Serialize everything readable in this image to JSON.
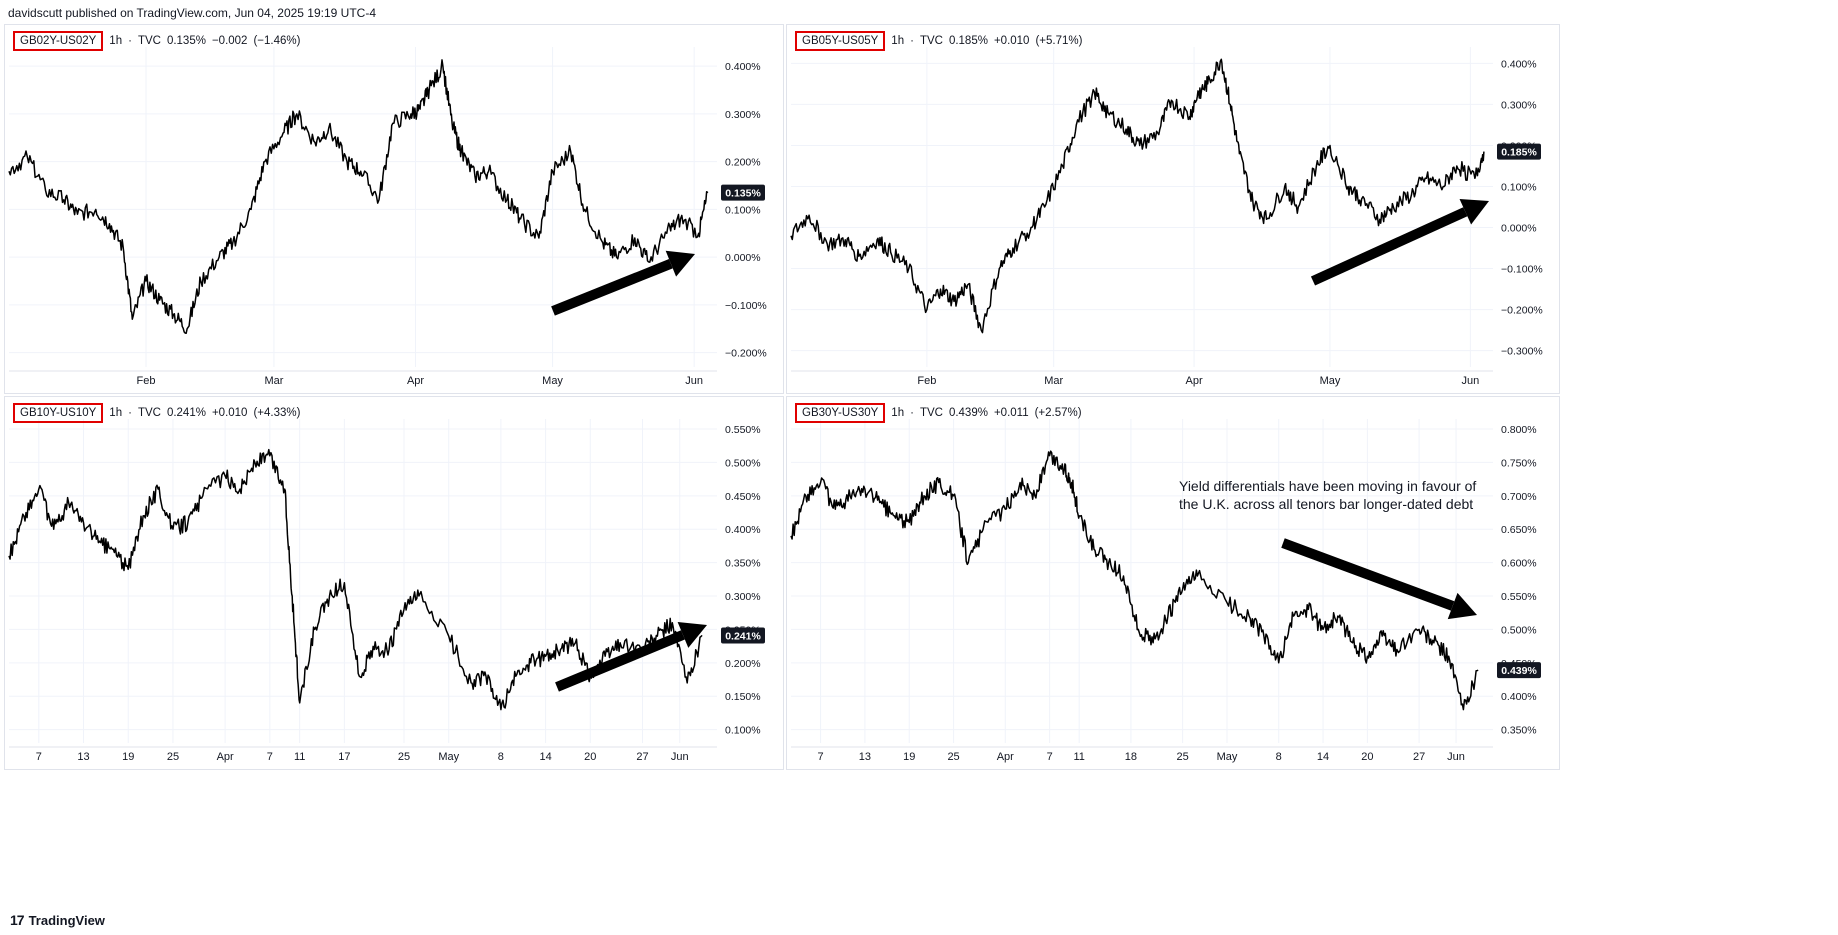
{
  "publisher": "davidscutt published on TradingView.com, Jun 04, 2025 19:19 UTC-4",
  "footer": {
    "logo_icon": "tradingview-logo-icon",
    "brand": "TradingView"
  },
  "colors": {
    "line": "#000000",
    "highlight": "#e00000",
    "grid": "#f0f3fa",
    "arrow": "#000000"
  },
  "chart_data": [
    {
      "type": "line",
      "symbol": "GB02Y-US02Y",
      "interval": "1h",
      "source": "TVC",
      "last_value": "0.135%",
      "change": "−0.002",
      "change_pct": "(−1.46%)",
      "price_badge": "0.135%",
      "y_ticks": [
        "0.400%",
        "0.300%",
        "0.200%",
        "0.100%",
        "0.000%",
        "−0.100%",
        "−0.200%"
      ],
      "y_tick_values": [
        0.4,
        0.3,
        0.2,
        0.1,
        0.0,
        -0.1,
        -0.2
      ],
      "ylim": [
        -0.23,
        0.44
      ],
      "x_ticks": [
        "Feb",
        "Mar",
        "Apr",
        "May",
        "Jun"
      ],
      "x_tick_dates": [
        "2025-02-01",
        "2025-03-01",
        "2025-04-01",
        "2025-05-01",
        "2025-06-01"
      ],
      "xlim": [
        "2025-01-02",
        "2025-06-06"
      ],
      "annotation_arrow": {
        "direction": "up-right"
      },
      "series": [
        {
          "x": [
            "2025-01-02",
            "2025-01-06",
            "2025-01-10",
            "2025-01-14",
            "2025-01-17",
            "2025-01-21",
            "2025-01-24",
            "2025-01-27",
            "2025-01-29",
            "2025-02-01",
            "2025-02-04",
            "2025-02-07",
            "2025-02-10",
            "2025-02-13",
            "2025-02-17",
            "2025-02-20",
            "2025-02-24",
            "2025-02-27",
            "2025-03-03",
            "2025-03-06",
            "2025-03-10",
            "2025-03-13",
            "2025-03-17",
            "2025-03-20",
            "2025-03-24",
            "2025-03-27",
            "2025-03-31",
            "2025-04-02",
            "2025-04-04",
            "2025-04-07",
            "2025-04-09",
            "2025-04-11",
            "2025-04-14",
            "2025-04-17",
            "2025-04-21",
            "2025-04-24",
            "2025-04-28",
            "2025-05-01",
            "2025-05-05",
            "2025-05-08",
            "2025-05-12",
            "2025-05-15",
            "2025-05-19",
            "2025-05-22",
            "2025-05-26",
            "2025-05-29",
            "2025-06-02",
            "2025-06-04"
          ],
          "values": [
            0.18,
            0.21,
            0.14,
            0.12,
            0.09,
            0.1,
            0.07,
            0.02,
            -0.13,
            -0.05,
            -0.09,
            -0.12,
            -0.15,
            -0.05,
            0.0,
            0.03,
            0.1,
            0.2,
            0.26,
            0.3,
            0.24,
            0.27,
            0.2,
            0.18,
            0.12,
            0.28,
            0.3,
            0.31,
            0.35,
            0.4,
            0.28,
            0.22,
            0.17,
            0.18,
            0.12,
            0.08,
            0.04,
            0.18,
            0.22,
            0.1,
            0.03,
            0.0,
            0.04,
            -0.01,
            0.05,
            0.08,
            0.05,
            0.135
          ]
        }
      ]
    },
    {
      "type": "line",
      "symbol": "GB05Y-US05Y",
      "interval": "1h",
      "source": "TVC",
      "last_value": "0.185%",
      "change": "+0.010",
      "change_pct": "(+5.71%)",
      "price_badge": "0.185%",
      "y_ticks": [
        "0.400%",
        "0.300%",
        "0.200%",
        "0.100%",
        "0.000%",
        "−0.100%",
        "−0.200%",
        "−0.300%"
      ],
      "y_tick_values": [
        0.4,
        0.3,
        0.2,
        0.1,
        0.0,
        -0.1,
        -0.2,
        -0.3
      ],
      "ylim": [
        -0.34,
        0.44
      ],
      "x_ticks": [
        "Feb",
        "Mar",
        "Apr",
        "May",
        "Jun"
      ],
      "x_tick_dates": [
        "2025-02-01",
        "2025-03-01",
        "2025-04-01",
        "2025-05-01",
        "2025-06-01"
      ],
      "xlim": [
        "2025-01-02",
        "2025-06-06"
      ],
      "annotation_arrow": {
        "direction": "up-right"
      },
      "series": [
        {
          "x": [
            "2025-01-02",
            "2025-01-06",
            "2025-01-10",
            "2025-01-14",
            "2025-01-17",
            "2025-01-21",
            "2025-01-24",
            "2025-01-28",
            "2025-02-01",
            "2025-02-04",
            "2025-02-07",
            "2025-02-10",
            "2025-02-13",
            "2025-02-17",
            "2025-02-20",
            "2025-02-24",
            "2025-02-27",
            "2025-03-03",
            "2025-03-06",
            "2025-03-10",
            "2025-03-13",
            "2025-03-17",
            "2025-03-20",
            "2025-03-24",
            "2025-03-27",
            "2025-03-31",
            "2025-04-02",
            "2025-04-04",
            "2025-04-07",
            "2025-04-09",
            "2025-04-11",
            "2025-04-14",
            "2025-04-17",
            "2025-04-21",
            "2025-04-24",
            "2025-04-28",
            "2025-05-01",
            "2025-05-05",
            "2025-05-08",
            "2025-05-12",
            "2025-05-15",
            "2025-05-19",
            "2025-05-22",
            "2025-05-26",
            "2025-05-29",
            "2025-06-02",
            "2025-06-04"
          ],
          "values": [
            -0.02,
            0.03,
            -0.04,
            -0.03,
            -0.07,
            -0.03,
            -0.06,
            -0.1,
            -0.2,
            -0.15,
            -0.18,
            -0.14,
            -0.25,
            -0.1,
            -0.05,
            0.0,
            0.05,
            0.15,
            0.25,
            0.33,
            0.28,
            0.24,
            0.2,
            0.23,
            0.31,
            0.27,
            0.33,
            0.35,
            0.41,
            0.3,
            0.18,
            0.06,
            0.02,
            0.1,
            0.05,
            0.15,
            0.2,
            0.1,
            0.07,
            0.02,
            0.05,
            0.08,
            0.12,
            0.1,
            0.15,
            0.12,
            0.185
          ]
        }
      ]
    },
    {
      "type": "line",
      "symbol": "GB10Y-US10Y",
      "interval": "1h",
      "source": "TVC",
      "last_value": "0.241%",
      "change": "+0.010",
      "change_pct": "(+4.33%)",
      "price_badge": "0.241%",
      "y_ticks": [
        "0.550%",
        "0.500%",
        "0.450%",
        "0.400%",
        "0.350%",
        "0.300%",
        "0.250%",
        "0.200%",
        "0.150%",
        "0.100%"
      ],
      "y_tick_values": [
        0.55,
        0.5,
        0.45,
        0.4,
        0.35,
        0.3,
        0.25,
        0.2,
        0.15,
        0.1
      ],
      "ylim": [
        0.08,
        0.565
      ],
      "x_ticks": [
        "7",
        "13",
        "19",
        "25",
        "Apr",
        "7",
        "11",
        "17",
        "25",
        "May",
        "8",
        "14",
        "20",
        "27",
        "Jun"
      ],
      "x_tick_dates": [
        "2025-03-07",
        "2025-03-13",
        "2025-03-19",
        "2025-03-25",
        "2025-04-01",
        "2025-04-07",
        "2025-04-11",
        "2025-04-17",
        "2025-04-25",
        "2025-05-01",
        "2025-05-08",
        "2025-05-14",
        "2025-05-20",
        "2025-05-27",
        "2025-06-01"
      ],
      "xlim": [
        "2025-03-03",
        "2025-06-06"
      ],
      "annotation_arrow": {
        "direction": "up-right"
      },
      "series": [
        {
          "x": [
            "2025-03-03",
            "2025-03-05",
            "2025-03-07",
            "2025-03-09",
            "2025-03-11",
            "2025-03-13",
            "2025-03-15",
            "2025-03-17",
            "2025-03-19",
            "2025-03-21",
            "2025-03-23",
            "2025-03-25",
            "2025-03-27",
            "2025-03-29",
            "2025-04-01",
            "2025-04-03",
            "2025-04-05",
            "2025-04-07",
            "2025-04-09",
            "2025-04-10",
            "2025-04-11",
            "2025-04-13",
            "2025-04-15",
            "2025-04-17",
            "2025-04-19",
            "2025-04-21",
            "2025-04-23",
            "2025-04-25",
            "2025-04-27",
            "2025-05-01",
            "2025-05-04",
            "2025-05-06",
            "2025-05-08",
            "2025-05-10",
            "2025-05-12",
            "2025-05-14",
            "2025-05-16",
            "2025-05-18",
            "2025-05-20",
            "2025-05-22",
            "2025-05-24",
            "2025-05-27",
            "2025-05-29",
            "2025-05-31",
            "2025-06-02",
            "2025-06-04"
          ],
          "values": [
            0.36,
            0.42,
            0.46,
            0.4,
            0.44,
            0.41,
            0.38,
            0.37,
            0.34,
            0.42,
            0.46,
            0.4,
            0.41,
            0.45,
            0.48,
            0.46,
            0.5,
            0.51,
            0.46,
            0.3,
            0.14,
            0.25,
            0.3,
            0.32,
            0.18,
            0.22,
            0.22,
            0.28,
            0.3,
            0.24,
            0.17,
            0.18,
            0.13,
            0.18,
            0.2,
            0.21,
            0.22,
            0.23,
            0.18,
            0.21,
            0.23,
            0.22,
            0.24,
            0.26,
            0.17,
            0.241
          ]
        }
      ]
    },
    {
      "type": "line",
      "symbol": "GB30Y-US30Y",
      "interval": "1h",
      "source": "TVC",
      "last_value": "0.439%",
      "change": "+0.011",
      "change_pct": "(+2.57%)",
      "price_badge": "0.439%",
      "y_ticks": [
        "0.800%",
        "0.750%",
        "0.700%",
        "0.650%",
        "0.600%",
        "0.550%",
        "0.500%",
        "0.450%",
        "0.400%",
        "0.350%"
      ],
      "y_tick_values": [
        0.8,
        0.75,
        0.7,
        0.65,
        0.6,
        0.55,
        0.5,
        0.45,
        0.4,
        0.35
      ],
      "ylim": [
        0.33,
        0.815
      ],
      "x_ticks": [
        "7",
        "13",
        "19",
        "25",
        "Apr",
        "7",
        "11",
        "18",
        "25",
        "May",
        "8",
        "14",
        "20",
        "27",
        "Jun"
      ],
      "x_tick_dates": [
        "2025-03-07",
        "2025-03-13",
        "2025-03-19",
        "2025-03-25",
        "2025-04-01",
        "2025-04-07",
        "2025-04-11",
        "2025-04-18",
        "2025-04-25",
        "2025-05-01",
        "2025-05-08",
        "2025-05-14",
        "2025-05-20",
        "2025-05-27",
        "2025-06-01"
      ],
      "xlim": [
        "2025-03-03",
        "2025-06-06"
      ],
      "annotations": [
        "Yield differentials have been moving in favour of",
        "the U.K. across all tenors bar longer-dated debt"
      ],
      "annotation_arrow": {
        "direction": "down-right"
      },
      "series": [
        {
          "x": [
            "2025-03-03",
            "2025-03-05",
            "2025-03-07",
            "2025-03-09",
            "2025-03-11",
            "2025-03-13",
            "2025-03-15",
            "2025-03-17",
            "2025-03-19",
            "2025-03-21",
            "2025-03-23",
            "2025-03-25",
            "2025-03-27",
            "2025-03-29",
            "2025-04-01",
            "2025-04-03",
            "2025-04-05",
            "2025-04-07",
            "2025-04-09",
            "2025-04-10",
            "2025-04-11",
            "2025-04-13",
            "2025-04-15",
            "2025-04-17",
            "2025-04-19",
            "2025-04-21",
            "2025-04-23",
            "2025-04-25",
            "2025-04-27",
            "2025-05-01",
            "2025-05-04",
            "2025-05-06",
            "2025-05-08",
            "2025-05-10",
            "2025-05-12",
            "2025-05-14",
            "2025-05-16",
            "2025-05-18",
            "2025-05-20",
            "2025-05-22",
            "2025-05-24",
            "2025-05-27",
            "2025-05-29",
            "2025-05-31",
            "2025-06-02",
            "2025-06-04"
          ],
          "values": [
            0.64,
            0.7,
            0.72,
            0.68,
            0.7,
            0.71,
            0.69,
            0.67,
            0.66,
            0.7,
            0.72,
            0.7,
            0.6,
            0.65,
            0.68,
            0.72,
            0.7,
            0.76,
            0.74,
            0.72,
            0.67,
            0.62,
            0.6,
            0.58,
            0.5,
            0.48,
            0.52,
            0.56,
            0.58,
            0.54,
            0.52,
            0.49,
            0.45,
            0.52,
            0.53,
            0.5,
            0.52,
            0.48,
            0.46,
            0.49,
            0.47,
            0.5,
            0.48,
            0.46,
            0.38,
            0.439
          ]
        }
      ]
    }
  ]
}
